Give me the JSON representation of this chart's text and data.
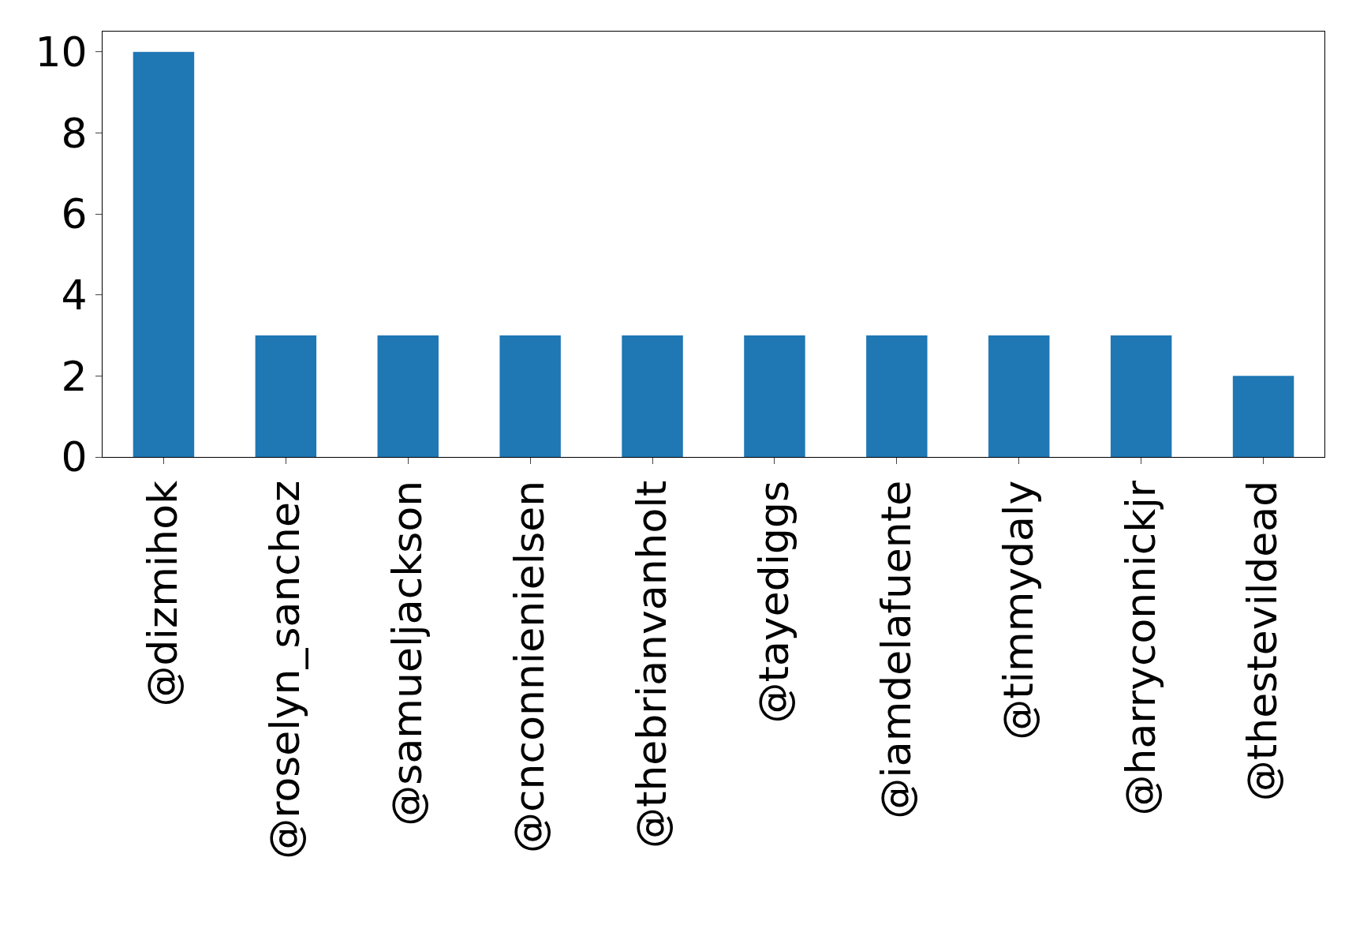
{
  "chart_data": {
    "type": "bar",
    "categories": [
      "@dizmihok",
      "@roselyn_sanchez",
      "@samueljackson",
      "@cnconnienielsen",
      "@thebrianvanholt",
      "@tayediggs",
      "@iamdelafuente",
      "@timmydaly",
      "@harryconnickjr",
      "@thestevildead"
    ],
    "values": [
      10,
      3,
      3,
      3,
      3,
      3,
      3,
      3,
      3,
      2
    ],
    "color": "#1f77b4",
    "ylim": [
      0,
      10.5
    ],
    "yticks": [
      0,
      2,
      4,
      6,
      8,
      10
    ],
    "grid": false,
    "legend": false
  }
}
